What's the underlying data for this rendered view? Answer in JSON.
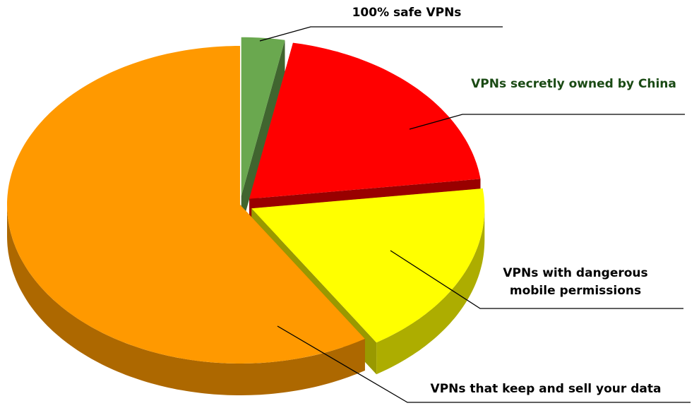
{
  "chart_data": {
    "type": "pie",
    "categories": [
      "100% safe VPNs",
      "VPNs secretly owned by China",
      "VPNs with dangerous mobile permissions",
      "VPNs that keep and sell your data"
    ],
    "values": [
      3,
      20,
      18,
      59
    ],
    "colors": [
      "#6aa84f",
      "#ff0000",
      "#ffff00",
      "#ff9900"
    ],
    "label_colors": [
      "#000000",
      "#1a4a14",
      "#000000",
      "#000000"
    ],
    "exploded": [
      true,
      true,
      true,
      false
    ],
    "three_d": true
  }
}
